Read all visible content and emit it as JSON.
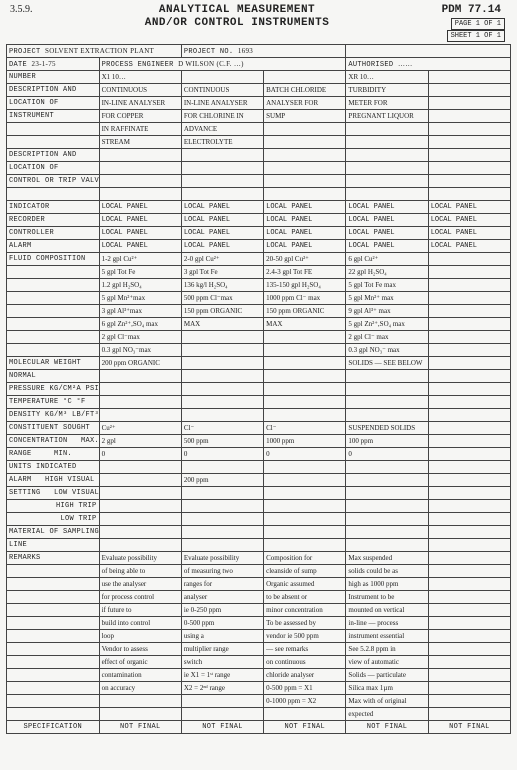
{
  "header": {
    "corner": "3.5.9.",
    "title1": "ANALYTICAL MEASUREMENT",
    "title2": "AND/OR CONTROL INSTRUMENTS",
    "pdm": "PDM 77.14",
    "pagebox": "PAGE 1 OF 1",
    "sheetbox": "SHEET 1  OF 1"
  },
  "meta": {
    "project_lbl": "PROJECT",
    "project_val": "SOLVENT EXTRACTION PLANT",
    "projno_lbl": "PROJECT No.",
    "projno_val": "1693",
    "date_lbl": "DATE",
    "date_val": "23-1-75",
    "pe_lbl": "PROCESS ENGINEER",
    "pe_val": "D WILSON  (c.f. …)",
    "auth_lbl": "AUTHORISED",
    "auth_val": "……"
  },
  "cols": {
    "number_lbl": "NUMBER",
    "c1": "X1 10…",
    "c4": "XR 10…"
  },
  "labels": {
    "desc_and": "DESCRIPTION AND",
    "loc_of": "LOCATION OF",
    "instrument": "INSTRUMENT",
    "blank": "",
    "desc_and2": "DESCRIPTION AND",
    "loc_of2": "LOCATION OF",
    "ctrl_trip": "CONTROL OR TRIP VALVE",
    "indicator": "INDICATOR",
    "recorder": "RECORDER",
    "controller": "CONTROLLER",
    "alarm": "ALARM",
    "fluid": "FLUID COMPOSITION",
    "mol": "MOLECULAR WEIGHT",
    "normal": "NORMAL",
    "press": "PRESSURE kg/cm²a psia",
    "temp": "TEMPERATURE °C °F",
    "dens": "DENSITY kg/m³ lb/ft³",
    "const": "CONSTITUENT SOUGHT",
    "conc": "CONCENTRATION",
    "range": "RANGE",
    "max": "MAX.",
    "min": "MIN.",
    "units": "UNITS INDICATED",
    "alarm_set": "ALARM",
    "setting": "SETTING",
    "hv": "HIGH VISUAL",
    "lv": "LOW VISUAL",
    "ht": "HIGH TRIP",
    "lt": "LOW TRIP",
    "sampling": "MATERIAL OF SAMPLING",
    "line": "LINE",
    "remarks": "REMARKS",
    "spec": "SPECIFICATION",
    "notfinal": "NOT FINAL"
  },
  "r": {
    "desc": {
      "c1": "CONTINUOUS",
      "c2": "CONTINUOUS",
      "c3": "BATCH CHLORIDE",
      "c4": "TURBIDITY"
    },
    "loc": {
      "c1": "IN-LINE ANALYSER",
      "c2": "IN-LINE ANALYSER",
      "c3": "ANALYSER FOR",
      "c4": "METER FOR"
    },
    "ins1": {
      "c1": "FOR COPPER",
      "c2": "FOR CHLORINE IN",
      "c3": "SUMP",
      "c4": "PREGNANT LIQUOR"
    },
    "ins2": {
      "c1": "IN RAFFINATE",
      "c2": "ADVANCE"
    },
    "ins3": {
      "c1": "STREAM",
      "c2": "ELECTROLYTE"
    },
    "ind": {
      "c1": "LOCAL   PANEL",
      "c2": "LOCAL   PANEL",
      "c3": "LOCAL   PANEL",
      "c4": "LOCAL   PANEL",
      "c5": "LOCAL   PANEL"
    },
    "rec": {
      "c1": "LOCAL   PANEL",
      "c2": "LOCAL   PANEL",
      "c3": "LOCAL   PANEL",
      "c4": "LOCAL   PANEL",
      "c5": "LOCAL   PANEL"
    },
    "ctl": {
      "c1": "LOCAL   PANEL",
      "c2": "LOCAL   PANEL",
      "c3": "LOCAL   PANEL",
      "c4": "LOCAL   PANEL",
      "c5": "LOCAL   PANEL"
    },
    "alm": {
      "c1": "LOCAL   PANEL",
      "c2": "LOCAL   PANEL",
      "c3": "LOCAL   PANEL",
      "c4": "LOCAL   PANEL",
      "c5": "LOCAL   PANEL"
    },
    "fl1": {
      "c1": "1-2 gpl Cu²⁺",
      "c2": "2-0 gpl Cu²⁺",
      "c3": "20-50 gpl Cu²⁺",
      "c4": "6 gpl Cu²⁺"
    },
    "fl2": {
      "c1": "5 gpl Tot Fe",
      "c2": "3 gpl Tot Fe",
      "c3": "2.4-3 gpl Tot FE",
      "c4": "22 gpl H₂SO₄"
    },
    "fl3": {
      "c1": "1.2 gpl H₂SO₄",
      "c2": "136 kg/l H₂SO₄",
      "c3": "135-150 gpl H₂SO₄",
      "c4": "5 gpl Tot Fe max"
    },
    "fl4": {
      "c1": "5 gpl Mn²⁺max",
      "c2": "500 ppm Cl⁻max",
      "c3": "1000 ppm Cl⁻ max",
      "c4": "5 gpl Mn²⁺ max"
    },
    "fl5": {
      "c1": "3 gpl Al³⁺max",
      "c2": "150 ppm ORGANIC",
      "c3": "150 ppm ORGANIC",
      "c4": "9 gpl Al³⁺ max"
    },
    "fl6": {
      "c1": "6 gpl Zn²⁺,SO₄ max",
      "c2": "MAX",
      "c3": "MAX",
      "c4": "5 gpl Zn²⁺,SO₄ max"
    },
    "fl7": {
      "c1": "2 gpl Cl⁻max",
      "c4": "2 gpl Cl⁻ max"
    },
    "fl8": {
      "c1": "0.3 gpl NO₃⁻max",
      "c4": "0.3 gpl NO₃⁻ max"
    },
    "mol1": {
      "c1": "200 ppm ORGANIC",
      "c4": "SOLIDS — SEE BELOW"
    },
    "const": {
      "c1": "Cu²⁺",
      "c2": "Cl⁻",
      "c3": "Cl⁻",
      "c4": "SUSPENDED SOLIDS"
    },
    "max": {
      "c1": "2 gpl",
      "c2": "500 ppm",
      "c3": "1000 ppm",
      "c4": "100 ppm"
    },
    "min": {
      "c1": "0",
      "c2": "0",
      "c3": "0",
      "c4": "0"
    },
    "hv": {
      "c2": "200 ppm"
    },
    "rem1": {
      "c1": "Evaluate possibility",
      "c2": "Evaluate possibility",
      "c3": "Composition for",
      "c4": "Max suspended"
    },
    "rem2": {
      "c1": "of being able to",
      "c2": "of measuring two",
      "c3": "cleanside of sump",
      "c4": "solids could be as"
    },
    "rem3": {
      "c1": "use the analyser",
      "c2": "ranges for",
      "c3": "Organic assumed",
      "c4": "high as 1000 ppm"
    },
    "rem4": {
      "c1": "for process control",
      "c2": "analyser",
      "c3": "to be absent or",
      "c4": "Instrument to be"
    },
    "rem5": {
      "c1": "if future to",
      "c2": "ie 0-250 ppm",
      "c3": "minor concentration",
      "c4": "mounted on vertical"
    },
    "rem6": {
      "c1": "build into control",
      "c2": "0-500 ppm",
      "c3": "To be assessed by",
      "c4": "in-line — process"
    },
    "rem7": {
      "c1": "loop",
      "c2": "using a",
      "c3": "vendor ie 500 ppm",
      "c4": "instrument essential"
    },
    "rem8": {
      "c1": "Vendor to assess",
      "c2": "multiplier range",
      "c3": "— see remarks",
      "c4": "See 5.2.8 ppm in"
    },
    "rem9": {
      "c1": "effect of organic",
      "c2": "switch",
      "c3": "on continuous",
      "c4": "view of automatic"
    },
    "rem10": {
      "c1": "contamination",
      "c2": "ie X1 = 1ˢᵗ range",
      "c3": "chloride analyser",
      "c4": "Solids — particulate"
    },
    "rem11": {
      "c1": "on accuracy",
      "c2": "X2 = 2ⁿᵈ range",
      "c3": "0-500 ppm = X1",
      "c4": "Silica max 1µm"
    },
    "rem12": {
      "c2": "",
      "c3": "0-1000 ppm = X2",
      "c4": "Max with of original"
    },
    "rem13": {
      "c4": "expected"
    }
  }
}
